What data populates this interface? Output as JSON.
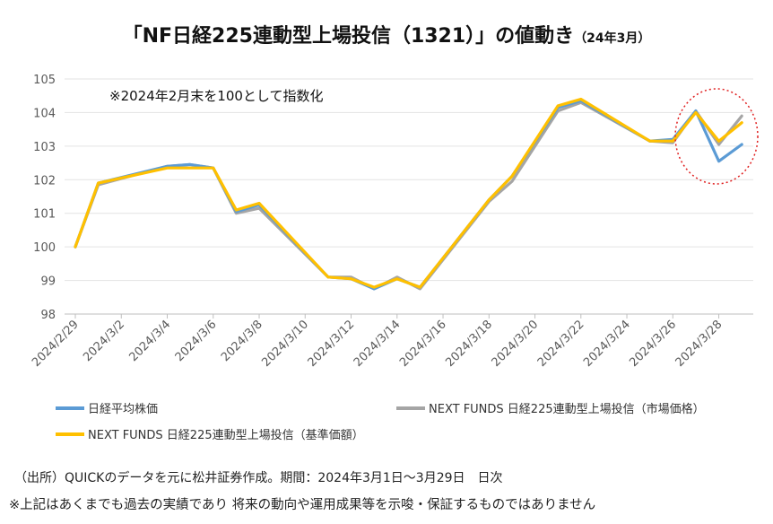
{
  "title": {
    "main": "「NF日経225連動型上場投信（1321）」の値動き",
    "sub": "（24年3月）"
  },
  "chart_data": {
    "type": "line",
    "annotation": "※2024年2月末を100として指数化",
    "ylim": [
      98,
      105
    ],
    "yticks": [
      98,
      99,
      100,
      101,
      102,
      103,
      104,
      105
    ],
    "x": [
      "2024/2/29",
      "2024/3/1",
      "2024/3/4",
      "2024/3/5",
      "2024/3/6",
      "2024/3/7",
      "2024/3/8",
      "2024/3/11",
      "2024/3/12",
      "2024/3/13",
      "2024/3/14",
      "2024/3/15",
      "2024/3/18",
      "2024/3/19",
      "2024/3/21",
      "2024/3/22",
      "2024/3/25",
      "2024/3/26",
      "2024/3/27",
      "2024/3/28",
      "2024/3/29"
    ],
    "xtick_labels": [
      "2024/2/29",
      "2024/3/2",
      "2024/3/4",
      "2024/3/6",
      "2024/3/8",
      "2024/3/10",
      "2024/3/12",
      "2024/3/14",
      "2024/3/16",
      "2024/3/18",
      "2024/3/20",
      "2024/3/22",
      "2024/3/24",
      "2024/3/26",
      "2024/3/28"
    ],
    "grid": true,
    "legend_position": "bottom",
    "highlight": "dotted red circle around 2024/3/26–2024/3/29",
    "series": [
      {
        "name": "日経平均株価",
        "color": "#5b9bd5",
        "values": [
          100,
          101.9,
          102.4,
          102.45,
          102.35,
          101.05,
          101.25,
          99.1,
          99.05,
          98.75,
          99.05,
          98.8,
          101.4,
          102.1,
          104.15,
          104.35,
          103.15,
          103.2,
          104.05,
          102.55,
          103.05
        ]
      },
      {
        "name": "NEXT FUNDS 日経225連動型上場投信（市場価格）",
        "color": "#a5a5a5",
        "values": [
          100,
          101.85,
          102.4,
          102.45,
          102.35,
          101.0,
          101.15,
          99.1,
          99.1,
          98.75,
          99.1,
          98.75,
          101.35,
          101.95,
          104.05,
          104.3,
          103.15,
          103.1,
          104.05,
          103.05,
          103.9
        ]
      },
      {
        "name": "NEXT FUNDS 日経225連動型上場投信（基準価額）",
        "color": "#ffc000",
        "values": [
          100,
          101.9,
          102.35,
          102.35,
          102.35,
          101.1,
          101.3,
          99.1,
          99.05,
          98.8,
          99.05,
          98.8,
          101.4,
          102.1,
          104.2,
          104.4,
          103.15,
          103.15,
          104.0,
          103.15,
          103.7
        ]
      }
    ]
  },
  "source_text": "（出所）QUICKのデータを元に松井証券作成。期間：2024年3月1日～3月29日　日次",
  "disclaimer_text": "※上記はあくまでも過去の実績であり 将来の動向や運用成果等を示唆・保証するものではありません"
}
